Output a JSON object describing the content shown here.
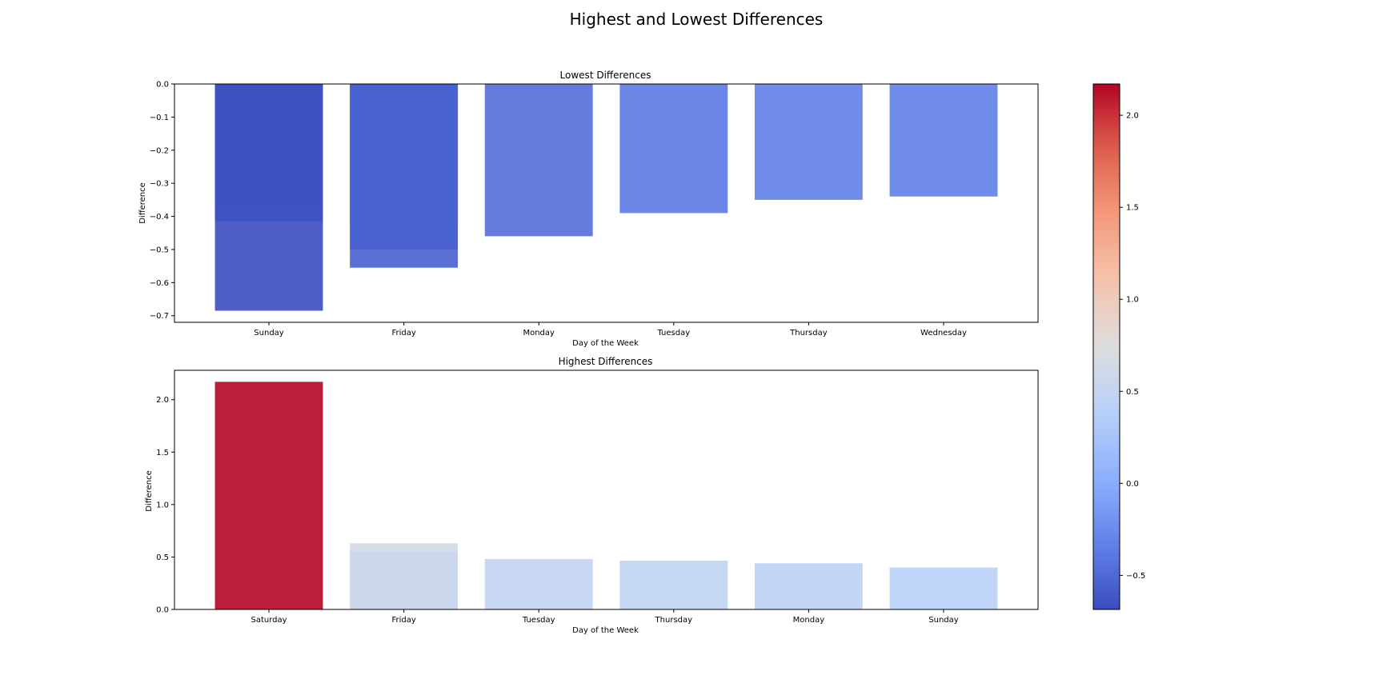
{
  "figure": {
    "title": "Highest and Lowest Differences"
  },
  "chart_data": [
    {
      "type": "bar",
      "title": "Lowest Differences",
      "xlabel": "Day of the Week",
      "ylabel": "Difference",
      "ylim": [
        -0.72,
        0.0
      ],
      "yticks": [
        0.0,
        -0.1,
        -0.2,
        -0.3,
        -0.4,
        -0.5,
        -0.6,
        -0.7
      ],
      "ytick_labels": [
        "0.0",
        "−0.1",
        "−0.2",
        "−0.3",
        "−0.4",
        "−0.5",
        "−0.6",
        "−0.7"
      ],
      "categories": [
        "Sunday",
        "Friday",
        "Monday",
        "Tuesday",
        "Thursday",
        "Wednesday"
      ],
      "bars": [
        {
          "category": "Sunday",
          "value": -0.36
        },
        {
          "category": "Sunday",
          "value": -0.415
        },
        {
          "category": "Sunday",
          "value": -0.685
        },
        {
          "category": "Friday",
          "value": -0.42
        },
        {
          "category": "Friday",
          "value": -0.5
        },
        {
          "category": "Friday",
          "value": -0.555
        },
        {
          "category": "Monday",
          "value": -0.46
        },
        {
          "category": "Tuesday",
          "value": -0.39
        },
        {
          "category": "Thursday",
          "value": -0.35
        },
        {
          "category": "Wednesday",
          "value": -0.34
        }
      ],
      "grid": false,
      "colormap": "coolwarm"
    },
    {
      "type": "bar",
      "title": "Highest Differences",
      "xlabel": "Day of the Week",
      "ylabel": "Difference",
      "ylim": [
        0.0,
        2.28
      ],
      "yticks": [
        0.0,
        0.5,
        1.0,
        1.5,
        2.0
      ],
      "ytick_labels": [
        "0.0",
        "0.5",
        "1.0",
        "1.5",
        "2.0"
      ],
      "categories": [
        "Saturday",
        "Friday",
        "Tuesday",
        "Thursday",
        "Monday",
        "Sunday"
      ],
      "bars": [
        {
          "category": "Saturday",
          "value": 2.17
        },
        {
          "category": "Friday",
          "value": 0.63
        },
        {
          "category": "Friday",
          "value": 0.55
        },
        {
          "category": "Tuesday",
          "value": 0.48
        },
        {
          "category": "Thursday",
          "value": 0.465
        },
        {
          "category": "Monday",
          "value": 0.44
        },
        {
          "category": "Sunday",
          "value": 0.4
        }
      ],
      "grid": false,
      "colormap": "coolwarm"
    }
  ],
  "colorbar": {
    "range": [
      -0.685,
      2.17
    ],
    "ticks": [
      2.0,
      1.5,
      1.0,
      0.5,
      0.0,
      -0.5
    ],
    "tick_labels": [
      "2.0",
      "1.5",
      "1.0",
      "0.5",
      "0.0",
      "−0.5"
    ],
    "placement": "right",
    "colormap": "coolwarm"
  }
}
